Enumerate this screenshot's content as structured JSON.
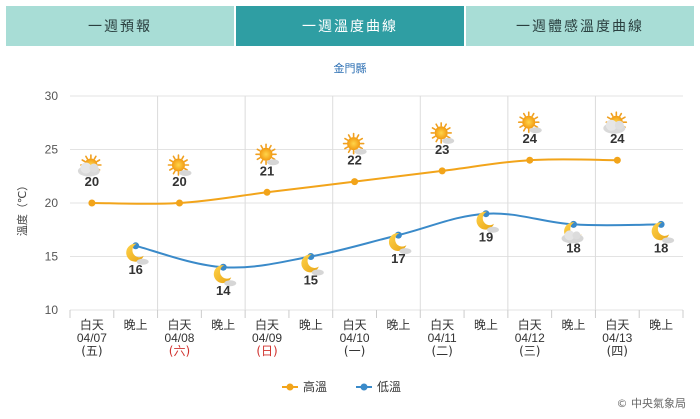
{
  "tabs": [
    {
      "label": "一週預報",
      "active": false
    },
    {
      "label": "一週溫度曲線",
      "active": true
    },
    {
      "label": "一週體感溫度曲線",
      "active": false
    }
  ],
  "credit": "© 中央氣象局",
  "chart_data": {
    "type": "line",
    "title": "金門縣",
    "ylabel": "溫度（℃）",
    "ylim": [
      10,
      30
    ],
    "yticks": [
      10,
      15,
      20,
      25,
      30
    ],
    "grid": true,
    "legend_position": "bottom",
    "periods": [
      {
        "name": "白天",
        "date": "04/07",
        "weekday": "(五)",
        "weekend": false
      },
      {
        "name": "晚上"
      },
      {
        "name": "白天",
        "date": "04/08",
        "weekday": "(六)",
        "weekend": true
      },
      {
        "name": "晚上"
      },
      {
        "name": "白天",
        "date": "04/09",
        "weekday": "(日)",
        "weekend": true
      },
      {
        "name": "晚上"
      },
      {
        "name": "白天",
        "date": "04/10",
        "weekday": "(一)",
        "weekend": false
      },
      {
        "name": "晚上"
      },
      {
        "name": "白天",
        "date": "04/11",
        "weekday": "(二)",
        "weekend": false
      },
      {
        "name": "晚上"
      },
      {
        "name": "白天",
        "date": "04/12",
        "weekday": "(三)",
        "weekend": false
      },
      {
        "name": "晚上"
      },
      {
        "name": "白天",
        "date": "04/13",
        "weekday": "(四)",
        "weekend": false
      },
      {
        "name": "晚上"
      }
    ],
    "series": [
      {
        "name": "高溫",
        "color": "#f2a41a",
        "values": [
          20,
          20,
          21,
          22,
          23,
          24,
          24
        ],
        "period_index": [
          0,
          2,
          4,
          6,
          8,
          10,
          12
        ],
        "icons": [
          "partly-cloudy-sun-icon",
          "sun-cloud-icon",
          "sun-cloud-icon",
          "sun-cloud-icon",
          "sun-cloud-icon",
          "sun-cloud-icon",
          "cloudy-sun-icon"
        ]
      },
      {
        "name": "低溫",
        "color": "#3a8ac9",
        "values": [
          16,
          14,
          15,
          17,
          19,
          18,
          18
        ],
        "period_index": [
          1,
          3,
          5,
          7,
          9,
          11,
          13
        ],
        "icons": [
          "moon-cloud-icon",
          "moon-cloud-icon",
          "moon-cloud-icon",
          "moon-cloud-icon",
          "moon-cloud-icon",
          "cloudy-moon-icon",
          "moon-cloud-icon"
        ]
      }
    ]
  }
}
